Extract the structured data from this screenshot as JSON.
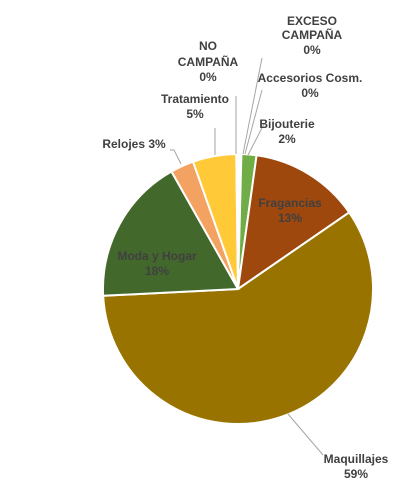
{
  "chart_data": {
    "type": "pie",
    "title": "",
    "start_angle_deg": 0,
    "direction": "clockwise",
    "slices": [
      {
        "name": "EXCESO CAMPAÑA",
        "value": 0.2,
        "label": "0%",
        "color": "#5b9bd5"
      },
      {
        "name": "Accesorios Cosm.",
        "value": 0.2,
        "label": "0%",
        "color": "#a5a5a5"
      },
      {
        "name": "Bijouterie",
        "value": 1.8,
        "label": "2%",
        "color": "#70ad47"
      },
      {
        "name": "Fragancias",
        "value": 13.2,
        "label": "13%",
        "color": "#9e480e"
      },
      {
        "name": "Maquillajes",
        "value": 58.8,
        "label": "59%",
        "color": "#997300"
      },
      {
        "name": "Moda y Hogar",
        "value": 17.6,
        "label": "18%",
        "color": "#43682b"
      },
      {
        "name": "Relojes",
        "value": 2.8,
        "label": "3%",
        "color": "#f4a261"
      },
      {
        "name": "Tratamiento",
        "value": 5.2,
        "label": "5%",
        "color": "#ffc938"
      },
      {
        "name": "NO CAMPAÑA",
        "value": 0.2,
        "label": "0%",
        "color": "#ffffff"
      }
    ]
  }
}
